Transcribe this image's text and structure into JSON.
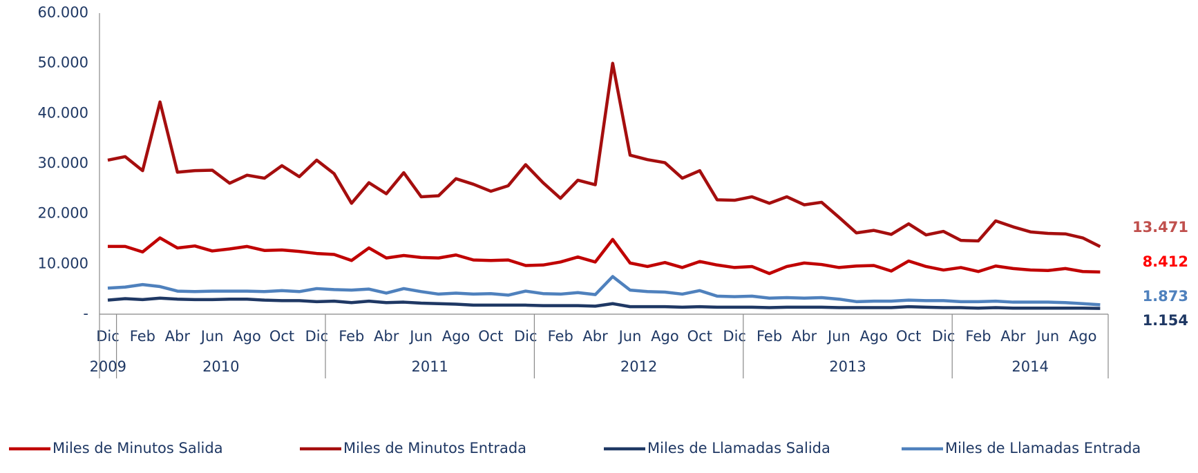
{
  "chart_data": {
    "type": "line",
    "categories": [
      "Dic",
      null,
      "Feb",
      null,
      "Abr",
      null,
      "Jun",
      null,
      "Ago",
      null,
      "Oct",
      null,
      "Dic",
      null,
      "Feb",
      null,
      "Abr",
      null,
      "Jun",
      null,
      "Ago",
      null,
      "Oct",
      null,
      "Dic",
      null,
      "Feb",
      null,
      "Abr",
      null,
      "Jun",
      null,
      "Ago",
      null,
      "Oct",
      null,
      "Dic",
      null,
      "Feb",
      null,
      "Abr",
      null,
      "Jun",
      null,
      "Ago",
      null,
      "Oct",
      null,
      "Dic",
      null,
      "Feb",
      null,
      "Abr",
      null,
      "Jun",
      null,
      "Ago",
      null
    ],
    "x_groups": [
      {
        "label": "2009",
        "count": 1
      },
      {
        "label": "2010",
        "count": 12
      },
      {
        "label": "2011",
        "count": 12
      },
      {
        "label": "2012",
        "count": 12
      },
      {
        "label": "2013",
        "count": 12
      },
      {
        "label": "2014",
        "count": 9
      }
    ],
    "ylim": [
      0,
      60000
    ],
    "yticks": [
      {
        "value": 0,
        "label": "-"
      },
      {
        "value": 10000,
        "label": "10.000"
      },
      {
        "value": 20000,
        "label": "20.000"
      },
      {
        "value": 30000,
        "label": "30.000"
      },
      {
        "value": 40000,
        "label": "40.000"
      },
      {
        "value": 50000,
        "label": "50.000"
      },
      {
        "value": 60000,
        "label": "60.000"
      }
    ],
    "grid": false,
    "legend": "bottom",
    "series": [
      {
        "name": "Miles de Minutos Salida",
        "color": "#c00000",
        "label_color": "#ff0000",
        "values": [
          13500,
          13500,
          12400,
          15200,
          13200,
          13600,
          12600,
          13000,
          13500,
          12700,
          12800,
          12500,
          12100,
          11900,
          10700,
          13200,
          11200,
          11700,
          11300,
          11200,
          11800,
          10800,
          10700,
          10800,
          9700,
          9800,
          10400,
          11400,
          10400,
          14900,
          10200,
          9500,
          10300,
          9300,
          10500,
          9800,
          9300,
          9500,
          8100,
          9500,
          10200,
          9900,
          9300,
          9600,
          9700,
          8600,
          10600,
          9500,
          8800,
          9300,
          8500,
          9600,
          9100,
          8800,
          8700,
          9100,
          8500,
          8412
        ],
        "value_labels": [
          null,
          null,
          null,
          null,
          null,
          null,
          null,
          null,
          null,
          null,
          null,
          null,
          null,
          null,
          null,
          null,
          null,
          null,
          null,
          null,
          null,
          null,
          null,
          null,
          null,
          null,
          null,
          null,
          null,
          null,
          null,
          null,
          null,
          null,
          null,
          null,
          null,
          null,
          null,
          null,
          null,
          null,
          null,
          null,
          null,
          null,
          null,
          null,
          null,
          null,
          null,
          null,
          null,
          null,
          null,
          null,
          null,
          "8.412"
        ]
      },
      {
        "name": "Miles de Minutos Entrada",
        "color": "#a50e0e",
        "label_color": "#c0504d",
        "values": [
          30700,
          31400,
          28600,
          42300,
          28300,
          28600,
          28700,
          26100,
          27700,
          27100,
          29600,
          27400,
          30700,
          28000,
          22100,
          26200,
          24000,
          28200,
          23400,
          23600,
          27000,
          25900,
          24500,
          25600,
          29800,
          26200,
          23100,
          26700,
          25800,
          50000,
          31700,
          30800,
          30200,
          27100,
          28600,
          22800,
          22700,
          23400,
          22100,
          23400,
          21800,
          22300,
          19300,
          16200,
          16700,
          15900,
          18000,
          15800,
          16500,
          14700,
          14600,
          18600,
          17400,
          16400,
          16100,
          16000,
          15200,
          13471
        ],
        "value_labels": [
          null,
          null,
          null,
          null,
          null,
          null,
          null,
          null,
          null,
          null,
          null,
          null,
          null,
          null,
          null,
          null,
          null,
          null,
          null,
          null,
          null,
          null,
          null,
          null,
          null,
          null,
          null,
          null,
          null,
          null,
          null,
          null,
          null,
          null,
          null,
          null,
          null,
          null,
          null,
          null,
          null,
          null,
          null,
          null,
          null,
          null,
          null,
          null,
          null,
          null,
          null,
          null,
          null,
          null,
          null,
          null,
          null,
          "13.471"
        ]
      },
      {
        "name": "Miles de Llamadas Salida",
        "color": "#1f3864",
        "label_color": "#1f3864",
        "values": [
          2800,
          3100,
          2900,
          3200,
          3000,
          2900,
          2900,
          3000,
          3000,
          2800,
          2700,
          2700,
          2500,
          2600,
          2300,
          2600,
          2300,
          2400,
          2200,
          2100,
          2000,
          1800,
          1800,
          1800,
          1800,
          1700,
          1700,
          1700,
          1600,
          2100,
          1500,
          1500,
          1500,
          1400,
          1500,
          1400,
          1400,
          1400,
          1300,
          1400,
          1400,
          1400,
          1300,
          1300,
          1300,
          1300,
          1500,
          1400,
          1300,
          1300,
          1200,
          1300,
          1200,
          1200,
          1200,
          1200,
          1200,
          1154
        ],
        "value_labels": [
          null,
          null,
          null,
          null,
          null,
          null,
          null,
          null,
          null,
          null,
          null,
          null,
          null,
          null,
          null,
          null,
          null,
          null,
          null,
          null,
          null,
          null,
          null,
          null,
          null,
          null,
          null,
          null,
          null,
          null,
          null,
          null,
          null,
          null,
          null,
          null,
          null,
          null,
          null,
          null,
          null,
          null,
          null,
          null,
          null,
          null,
          null,
          null,
          null,
          null,
          null,
          null,
          null,
          null,
          null,
          null,
          null,
          "1.154"
        ]
      },
      {
        "name": "Miles de Llamadas Entrada",
        "color": "#4f81bd",
        "label_color": "#4f81bd",
        "values": [
          5200,
          5400,
          5900,
          5500,
          4600,
          4500,
          4600,
          4600,
          4600,
          4500,
          4700,
          4500,
          5100,
          4900,
          4800,
          5000,
          4200,
          5100,
          4500,
          4000,
          4200,
          4000,
          4100,
          3800,
          4600,
          4100,
          4000,
          4300,
          3900,
          7500,
          4800,
          4500,
          4400,
          4000,
          4700,
          3600,
          3500,
          3600,
          3200,
          3300,
          3200,
          3300,
          3000,
          2500,
          2600,
          2600,
          2800,
          2700,
          2700,
          2500,
          2500,
          2600,
          2400,
          2400,
          2400,
          2300,
          2100,
          1873
        ],
        "value_labels": [
          null,
          null,
          null,
          null,
          null,
          null,
          null,
          null,
          null,
          null,
          null,
          null,
          null,
          null,
          null,
          null,
          null,
          null,
          null,
          null,
          null,
          null,
          null,
          null,
          null,
          null,
          null,
          null,
          null,
          null,
          null,
          null,
          null,
          null,
          null,
          null,
          null,
          null,
          null,
          null,
          null,
          null,
          null,
          null,
          null,
          null,
          null,
          null,
          null,
          null,
          null,
          null,
          null,
          null,
          null,
          null,
          null,
          "1.873"
        ]
      }
    ]
  }
}
